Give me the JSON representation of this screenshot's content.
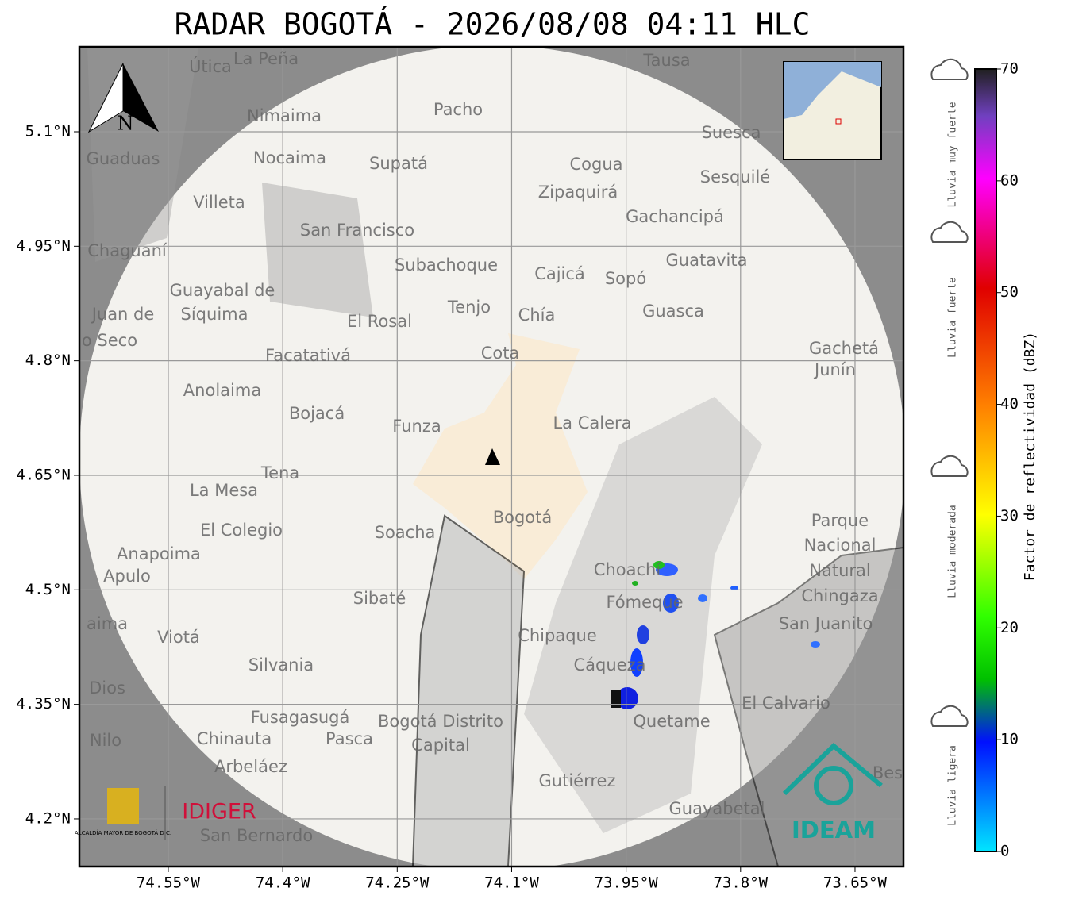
{
  "title": "RADAR BOGOTÁ - 2026/08/08 04:11 HLC",
  "map": {
    "xlim": [
      -74.6665,
      -73.5865
    ],
    "ylim": [
      4.1376,
      5.2112
    ],
    "xticks": [
      {
        "value": -74.55,
        "label": "74.55°W"
      },
      {
        "value": -74.4,
        "label": "74.4°W"
      },
      {
        "value": -74.25,
        "label": "74.25°W"
      },
      {
        "value": -74.1,
        "label": "74.1°W"
      },
      {
        "value": -73.95,
        "label": "73.95°W"
      },
      {
        "value": -73.8,
        "label": "73.8°W"
      },
      {
        "value": -73.65,
        "label": "73.65°W"
      }
    ],
    "yticks": [
      {
        "value": 5.1,
        "label": "5.1°N"
      },
      {
        "value": 4.95,
        "label": "4.95°N"
      },
      {
        "value": 4.8,
        "label": "4.8°N"
      },
      {
        "value": 4.65,
        "label": "4.65°N"
      },
      {
        "value": 4.5,
        "label": "4.5°N"
      },
      {
        "value": 4.35,
        "label": "4.35°N"
      },
      {
        "value": 4.2,
        "label": "4.2°N"
      }
    ],
    "north": "N",
    "places": [
      "La Peña",
      "Útica",
      "Tausa",
      "Pacho",
      "Nimaima",
      "Guaduas",
      "Nocaima",
      "Supatá",
      "Cogua",
      "Suesca",
      "Sesquilé",
      "Zipaquirá",
      "Villeta",
      "Gachancipá",
      "San Francisco",
      "Chaguaní",
      "Guatavita",
      "Subachoque",
      "Cajicá",
      "Sopó",
      "Guayabal de",
      "Síquima",
      "Tenjo",
      "Guasca",
      "Juan de",
      "Chía",
      "El Rosal",
      "o Seco",
      "Gachetá",
      "Facatativá",
      "Cota",
      "Junín",
      "Anolaima",
      "Bojacá",
      "La Calera",
      "Funza",
      "Tena",
      "La Mesa",
      "Bogotá",
      "Parque",
      "Nacional",
      "Natural",
      "Chingaza",
      "Soacha",
      "El Colegio",
      "Anapoima",
      "Apulo",
      "Choachí",
      "Sibaté",
      "Fómeque",
      "San Juanito",
      "aima",
      "Viotá",
      "Chipaque",
      "Silvania",
      "Cáqueza",
      "Dios",
      "El Calvario",
      "Fusagasugá",
      "Bogotá Distrito",
      "Capital",
      "Quetame",
      "Nilo",
      "Chinauta",
      "Pasca",
      "Arbeláez",
      "Gutiérrez",
      "Guayabetal",
      "San Bernardo",
      "Bes"
    ]
  },
  "colorbar": {
    "label": "Factor de reflectividad (dBZ)",
    "lim": [
      0,
      70
    ],
    "ticks": [
      0,
      10,
      20,
      30,
      40,
      50,
      60,
      70
    ],
    "intensities": [
      "Lluvia muy fuerte",
      "Lluvia fuerte",
      "Lluvia moderada",
      "Lluvia ligera"
    ]
  },
  "logos": {
    "alcaldia": "ALCALDÍA MAYOR DE BOGOTÁ D.C.",
    "idiger": "IDIGER",
    "ideam": "IDEAM"
  }
}
